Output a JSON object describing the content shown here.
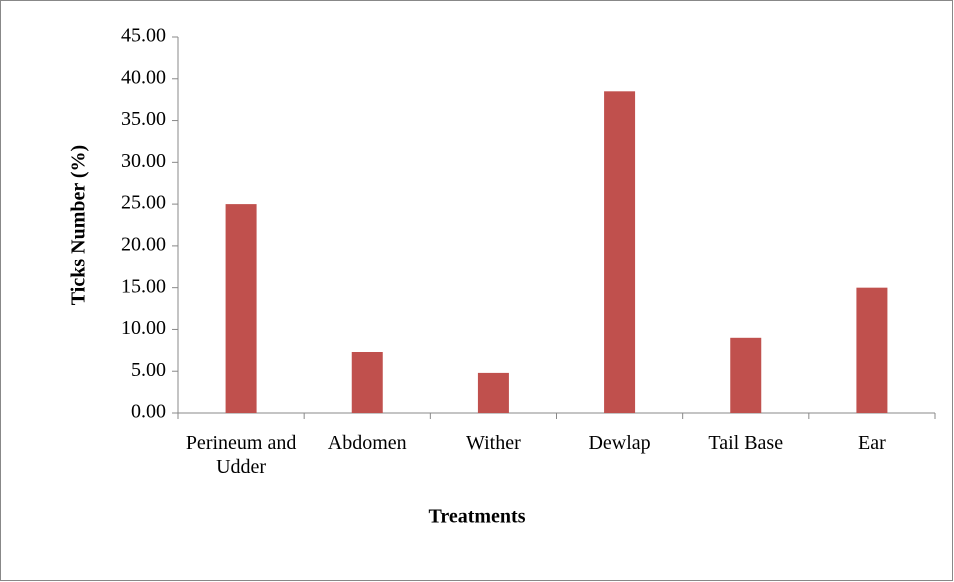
{
  "chart_data": {
    "type": "bar",
    "ylabel": "Ticks Number (%)",
    "xlabel": "Treatments",
    "categories": [
      "Perineum and Udder",
      "Abdomen",
      "Wither",
      "Dewlap",
      "Tail Base",
      "Ear"
    ],
    "values": [
      25.0,
      7.3,
      4.8,
      38.5,
      9.0,
      15.0
    ],
    "color": "#c0504d",
    "ylim": [
      0,
      45
    ],
    "yticks": [
      {
        "value": 0,
        "label": "0.00"
      },
      {
        "value": 5,
        "label": "5.00"
      },
      {
        "value": 10,
        "label": "10.00"
      },
      {
        "value": 15,
        "label": "15.00"
      },
      {
        "value": 20,
        "label": "20.00"
      },
      {
        "value": 25,
        "label": "25.00"
      },
      {
        "value": 30,
        "label": "30.00"
      },
      {
        "value": 35,
        "label": "35.00"
      },
      {
        "value": 40,
        "label": "40.00"
      },
      {
        "value": 45,
        "label": "45.00"
      }
    ],
    "grid": false
  }
}
